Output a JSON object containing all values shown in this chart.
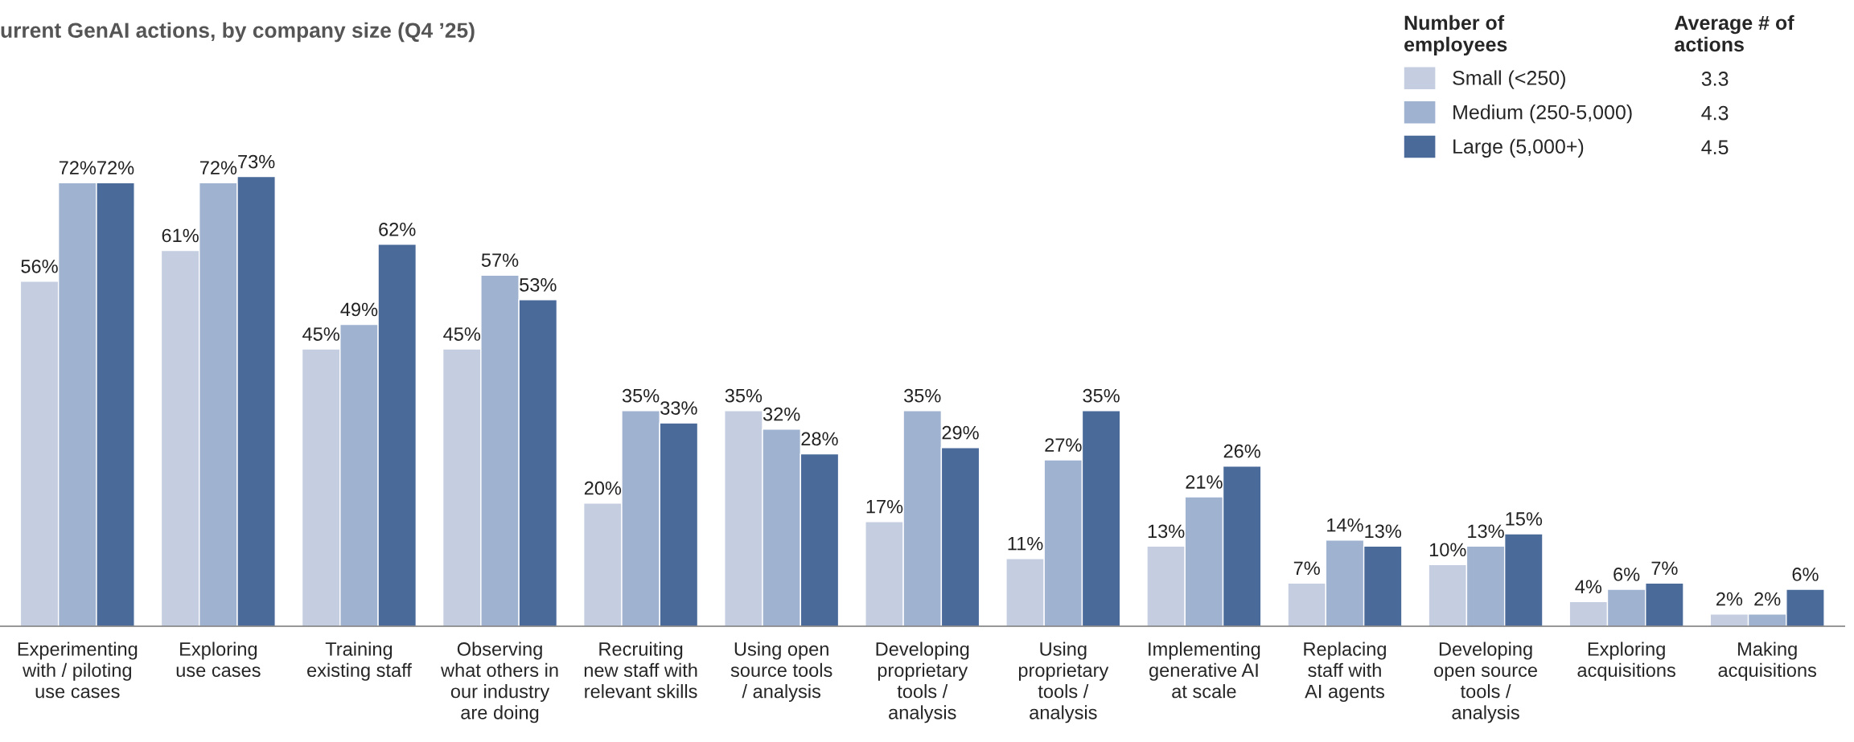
{
  "chart_data": {
    "type": "bar",
    "title": "urrent GenAI actions, by company size (Q4 ’25)",
    "categories": [
      "Experimenting\nwith / piloting\nuse cases",
      "Exploring\nuse cases",
      "Training\nexisting staff",
      "Observing\nwhat others in\nour industry\nare doing",
      "Recruiting\nnew staff with\nrelevant skills",
      "Using open\nsource tools\n/ analysis",
      "Developing\nproprietary\ntools /\nanalysis",
      "Using\nproprietary\ntools /\nanalysis",
      "Implementing\ngenerative AI\nat scale",
      "Replacing\nstaff with\nAI agents",
      "Developing\nopen source\ntools /\nanalysis",
      "Exploring\nacquisitions",
      "Making\nacquisitions"
    ],
    "series": [
      {
        "name": "Small (<250)",
        "color": "#c4cee0",
        "values": [
          56,
          61,
          45,
          45,
          20,
          35,
          17,
          11,
          13,
          7,
          10,
          4,
          2
        ],
        "value_labels": [
          "56%",
          "61%",
          "45%",
          "45%",
          "20%",
          "35%",
          "17%",
          "11%",
          "13%",
          "7%",
          "10%",
          "4%",
          "2%"
        ]
      },
      {
        "name": "Medium (250-5,000)",
        "color": "#9fb2d0",
        "values": [
          72,
          72,
          49,
          57,
          35,
          32,
          35,
          27,
          21,
          14,
          13,
          6,
          2
        ],
        "value_labels": [
          "72%",
          "72%",
          "49%",
          "57%",
          "35%",
          "32%",
          "35%",
          "27%",
          "21%",
          "14%",
          "13%",
          "6%",
          "2%"
        ]
      },
      {
        "name": "Large (5,000+)",
        "color": "#4a6a9a",
        "values": [
          72,
          73,
          62,
          53,
          33,
          28,
          29,
          35,
          26,
          13,
          15,
          7,
          6
        ],
        "value_labels": [
          "72%",
          "73%",
          "62%",
          "53%",
          "33%",
          "28%",
          "29%",
          "35%",
          "26%",
          "13%",
          "15%",
          "7%",
          "6%"
        ]
      }
    ],
    "legend": "top right",
    "legend_title": "Number of\nemployees",
    "annotations": [
      "Average # of\nactions",
      "3.3",
      "4.3",
      "4.5"
    ],
    "grid": false
  }
}
